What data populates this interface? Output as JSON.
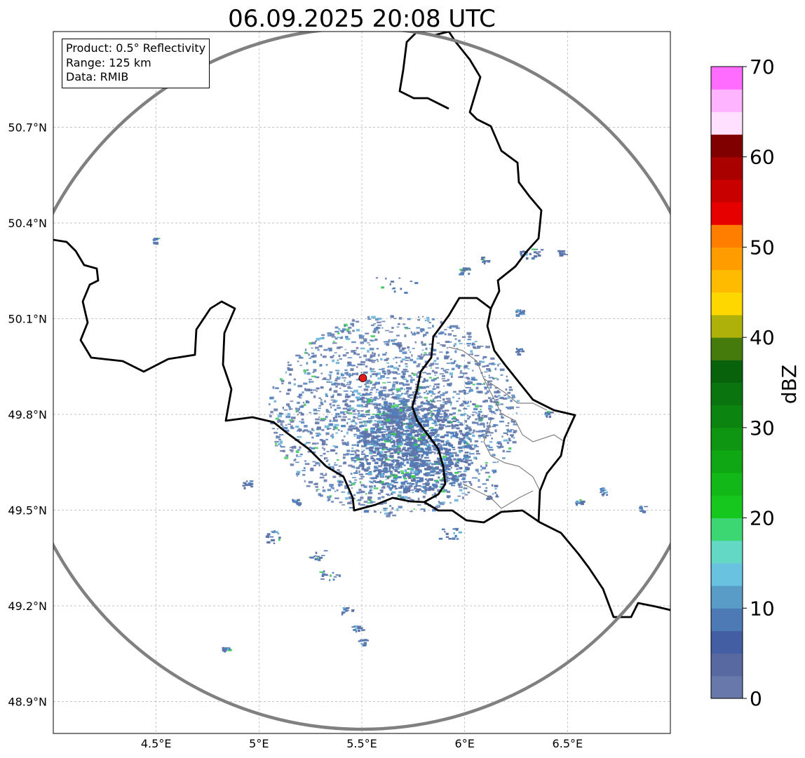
{
  "title": "06.09.2025 20:08 UTC",
  "info": {
    "product": "Product: 0.5° Reflectivity",
    "range": "Range: 125 km",
    "source": "Data: RMIB"
  },
  "map": {
    "lon_range": [
      4.0,
      7.0
    ],
    "lat_range": [
      48.8,
      51.0
    ],
    "lon_ticks": [
      "4.5°E",
      "5°E",
      "5.5°E",
      "6°E",
      "6.5°E"
    ],
    "lon_tick_values": [
      4.5,
      5.0,
      5.5,
      6.0,
      6.5
    ],
    "lat_ticks": [
      "50.7°N",
      "50.4°N",
      "50.1°N",
      "49.8°N",
      "49.5°N",
      "49.2°N",
      "48.9°N"
    ],
    "lat_tick_values": [
      50.7,
      50.4,
      50.1,
      49.8,
      49.5,
      49.2,
      48.9
    ],
    "radar_site": {
      "lon": 5.505,
      "lat": 49.914
    },
    "range_ring_color": "#808080",
    "border_color": "#000000",
    "admin_border_color": "#808080",
    "radar_marker_color": "#e31a1c"
  },
  "colorbar": {
    "label": "dBZ",
    "ticks": [
      "0",
      "10",
      "20",
      "30",
      "40",
      "50",
      "60",
      "70"
    ],
    "tick_values": [
      0,
      10,
      20,
      30,
      40,
      50,
      60,
      70
    ],
    "step": 2.5,
    "colors": [
      "#6878aa",
      "#5868a0",
      "#445ea4",
      "#4d7ab5",
      "#5a9cc8",
      "#68c2e0",
      "#62d8c5",
      "#3cd672",
      "#16c81e",
      "#12b818",
      "#10a714",
      "#0e9612",
      "#0c8510",
      "#0a740e",
      "#08620c",
      "#457a0c",
      "#adb109",
      "#ffd700",
      "#ffbb00",
      "#ff9c00",
      "#ff7e00",
      "#e60000",
      "#c80000",
      "#a90000",
      "#800000",
      "#ffe0ff",
      "#ffb4ff",
      "#ff6cff",
      "#eb36ec"
    ]
  },
  "echo_palette": {
    "weak": "#5f74a8",
    "mid": "#4f7fbc",
    "moderate": "#62b0d8",
    "strong": "#3cc85a"
  }
}
